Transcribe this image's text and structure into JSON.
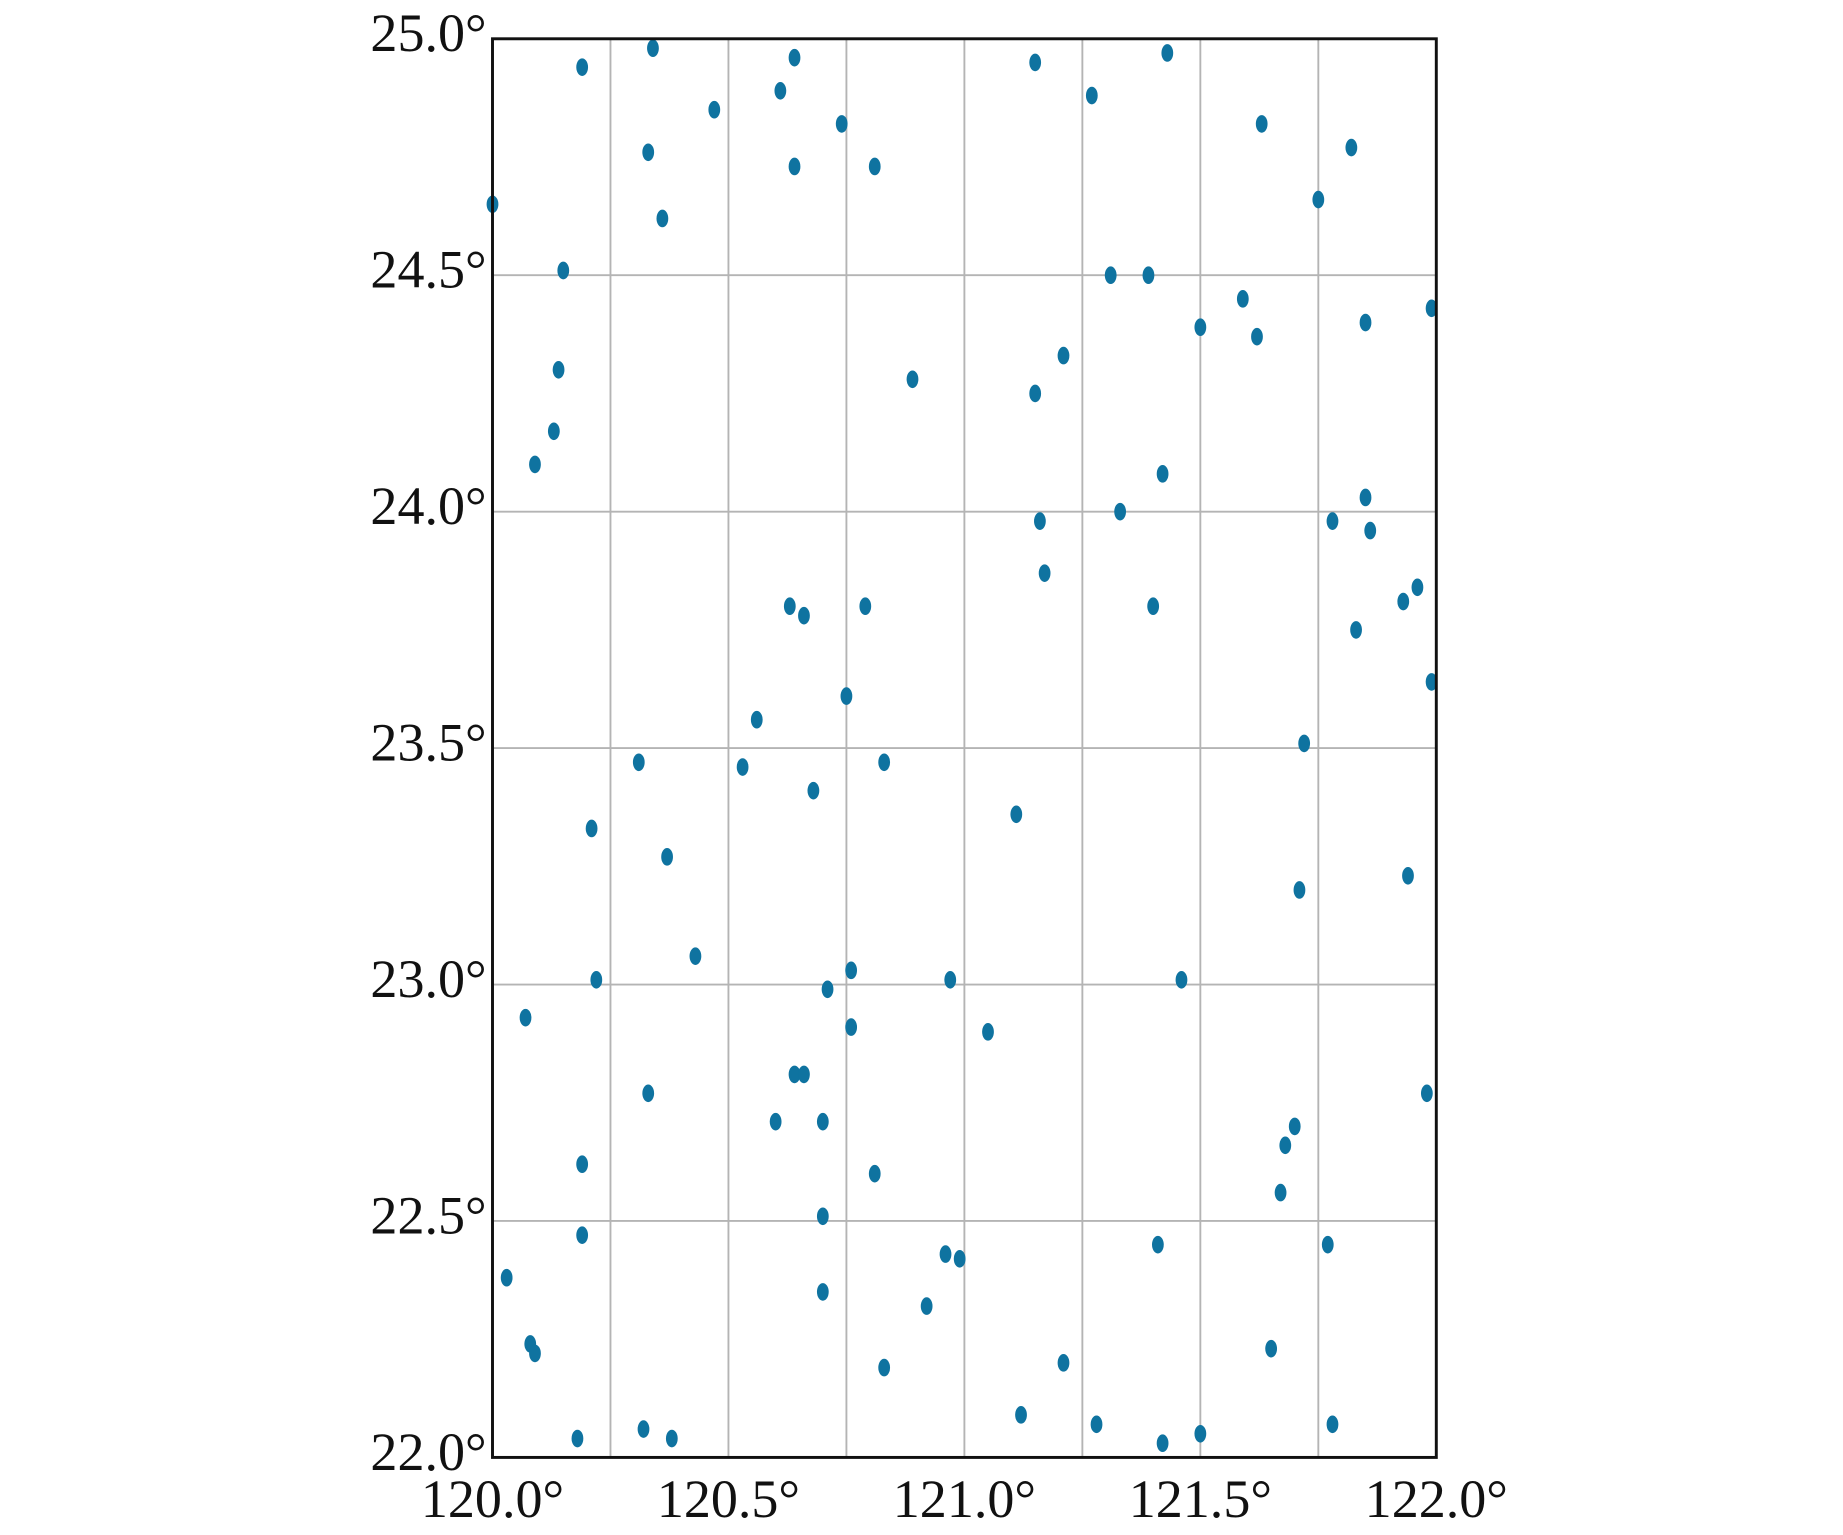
{
  "chart_data": {
    "type": "scatter",
    "color": "#0f73a0",
    "grid": true,
    "xlim": [
      120,
      122
    ],
    "ylim": [
      22,
      25
    ],
    "xticks": [
      {
        "value": 120,
        "label": "120.0°"
      },
      {
        "value": 120.5,
        "label": "120.5°"
      },
      {
        "value": 121,
        "label": "121.0°"
      },
      {
        "value": 121.5,
        "label": "121.5°"
      },
      {
        "value": 122,
        "label": "122.0°"
      }
    ],
    "xminor": [
      120.25,
      120.75,
      121.25,
      121.75
    ],
    "yticks": [
      {
        "value": 22,
        "label": "22.0°"
      },
      {
        "value": 22.5,
        "label": "22.5°"
      },
      {
        "value": 23,
        "label": "23.0°"
      },
      {
        "value": 23.5,
        "label": "23.5°"
      },
      {
        "value": 24,
        "label": "24.0°"
      },
      {
        "value": 24.5,
        "label": "24.5°"
      },
      {
        "value": 25,
        "label": "25.0°"
      }
    ],
    "x": [
      120.0,
      120.19,
      120.34,
      120.64,
      120.47,
      120.61,
      120.74,
      120.33,
      120.64,
      120.81,
      120.36,
      121.15,
      121.27,
      121.43,
      121.63,
      121.82,
      121.75,
      120.15,
      121.31,
      121.39,
      121.5,
      121.59,
      121.62,
      121.85,
      121.99,
      120.14,
      120.89,
      121.21,
      121.15,
      120.13,
      120.09,
      121.42,
      121.33,
      121.16,
      121.78,
      121.85,
      121.86,
      121.17,
      120.63,
      120.66,
      120.79,
      121.4,
      121.83,
      121.93,
      121.96,
      121.99,
      120.75,
      120.56,
      120.31,
      120.53,
      120.83,
      121.72,
      120.68,
      121.11,
      120.21,
      120.37,
      121.94,
      121.71,
      120.43,
      120.76,
      120.22,
      120.71,
      120.97,
      121.46,
      120.07,
      120.76,
      121.05,
      121.98,
      120.33,
      120.64,
      120.66,
      120.6,
      120.7,
      121.7,
      121.68,
      120.19,
      120.81,
      121.67,
      120.7,
      120.19,
      121.41,
      121.77,
      120.96,
      120.99,
      120.03,
      120.7,
      120.92,
      120.08,
      120.09,
      121.65,
      121.21,
      120.83,
      121.12,
      120.32,
      121.28,
      121.78,
      120.38,
      120.18,
      121.5,
      121.42
    ],
    "values": [
      24.65,
      24.94,
      24.98,
      24.96,
      24.85,
      24.89,
      24.82,
      24.76,
      24.73,
      24.73,
      24.62,
      24.95,
      24.88,
      24.97,
      24.82,
      24.77,
      24.66,
      24.51,
      24.5,
      24.5,
      24.39,
      24.45,
      24.37,
      24.4,
      24.43,
      24.3,
      24.28,
      24.33,
      24.25,
      24.17,
      24.1,
      24.08,
      24.0,
      23.98,
      23.98,
      24.03,
      23.96,
      23.87,
      23.8,
      23.78,
      23.8,
      23.8,
      23.75,
      23.81,
      23.84,
      23.64,
      23.61,
      23.56,
      23.47,
      23.46,
      23.47,
      23.51,
      23.41,
      23.36,
      23.33,
      23.27,
      23.23,
      23.2,
      23.06,
      23.03,
      23.01,
      22.99,
      23.01,
      23.01,
      22.93,
      22.91,
      22.9,
      22.77,
      22.77,
      22.81,
      22.81,
      22.71,
      22.71,
      22.7,
      22.66,
      22.62,
      22.6,
      22.56,
      22.51,
      22.47,
      22.45,
      22.45,
      22.43,
      22.42,
      22.38,
      22.35,
      22.32,
      22.24,
      22.22,
      22.23,
      22.2,
      22.19,
      22.09,
      22.06,
      22.07,
      22.07,
      22.04,
      22.04,
      22.05,
      22.03
    ]
  }
}
